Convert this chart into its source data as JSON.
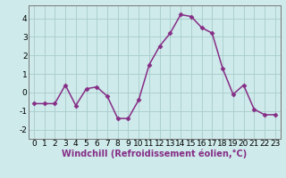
{
  "x": [
    0,
    1,
    2,
    3,
    4,
    5,
    6,
    7,
    8,
    9,
    10,
    11,
    12,
    13,
    14,
    15,
    16,
    17,
    18,
    19,
    20,
    21,
    22,
    23
  ],
  "y": [
    -0.6,
    -0.6,
    -0.6,
    0.4,
    -0.7,
    0.2,
    0.3,
    -0.2,
    -1.4,
    -1.4,
    -0.4,
    1.5,
    2.5,
    3.2,
    4.2,
    4.1,
    3.5,
    3.2,
    1.3,
    -0.1,
    0.4,
    -0.9,
    -1.2,
    -1.2
  ],
  "line_color": "#862d86",
  "marker": "D",
  "marker_size": 2.5,
  "xlabel": "Windchill (Refroidissement éolien,°C)",
  "xlabel_fontsize": 7,
  "xlabel_color": "#862d86",
  "xlim": [
    -0.5,
    23.5
  ],
  "ylim": [
    -2.5,
    4.7
  ],
  "yticks": [
    -2,
    -1,
    0,
    1,
    2,
    3,
    4
  ],
  "xticks": [
    0,
    1,
    2,
    3,
    4,
    5,
    6,
    7,
    8,
    9,
    10,
    11,
    12,
    13,
    14,
    15,
    16,
    17,
    18,
    19,
    20,
    21,
    22,
    23
  ],
  "bg_color": "#ceeaea",
  "grid_color": "#a8cccc",
  "tick_fontsize": 6.5,
  "line_width": 1.1
}
